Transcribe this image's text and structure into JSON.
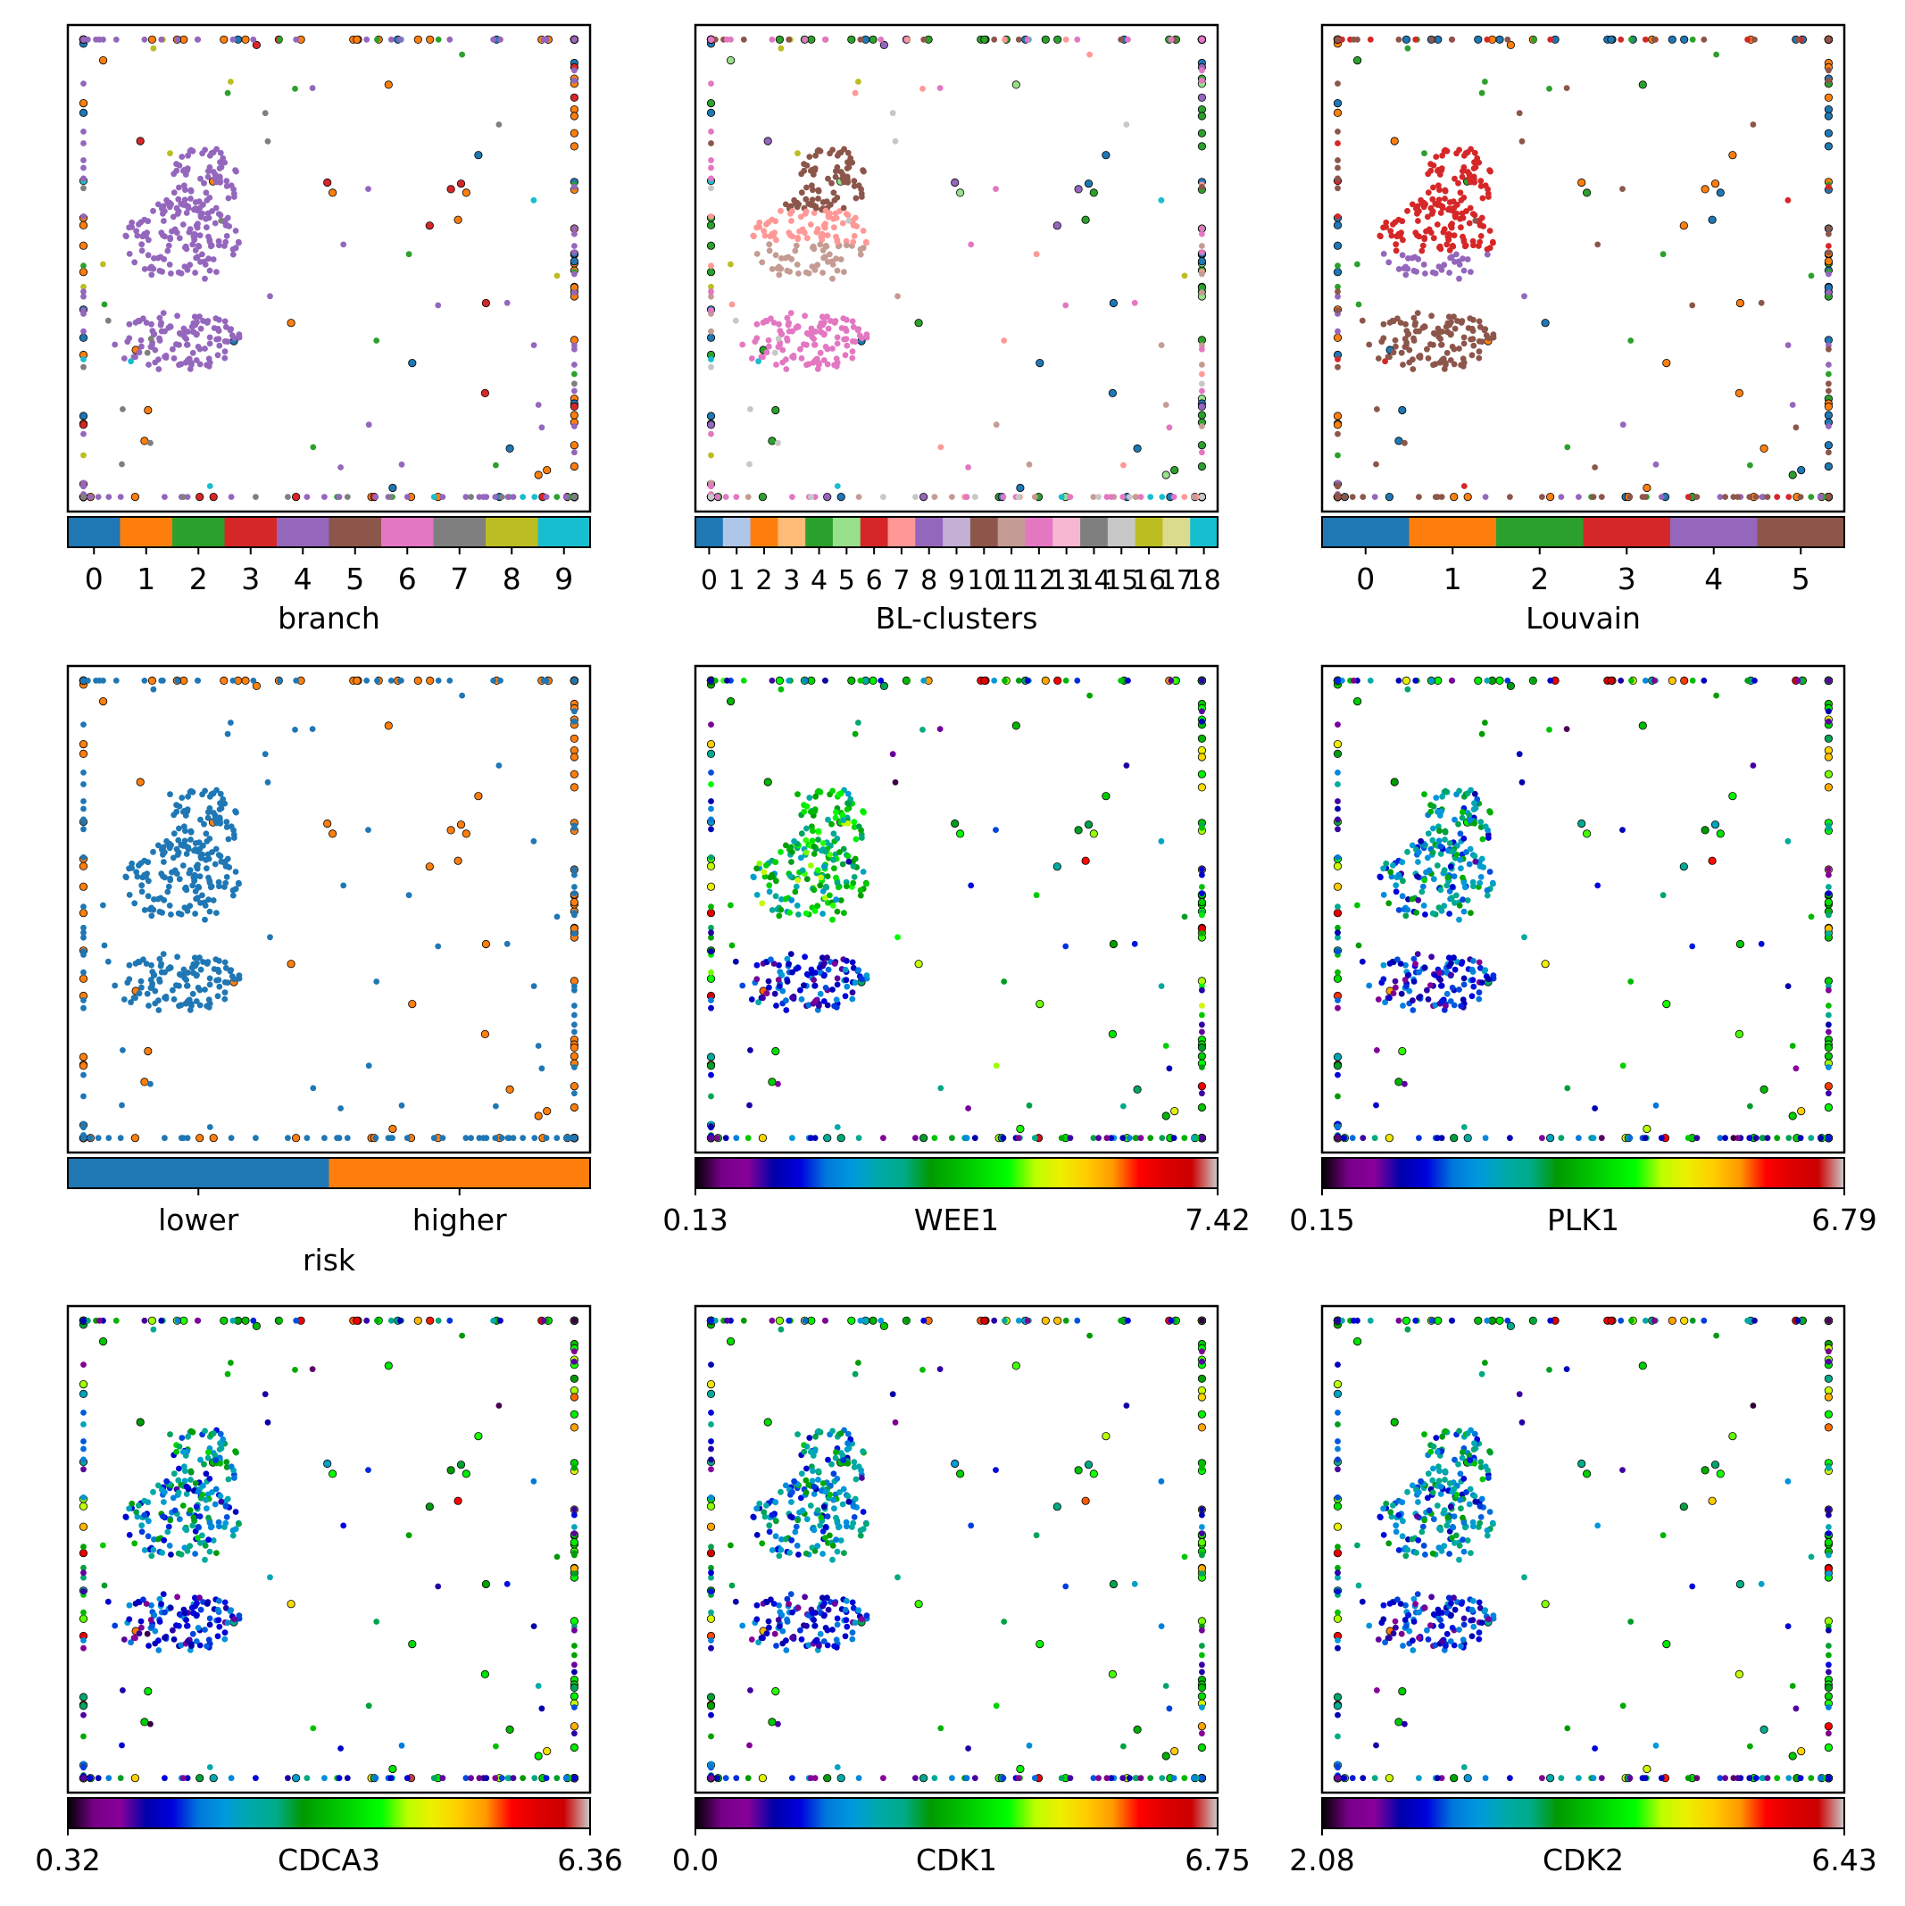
{
  "figure": {
    "layout": "3x3 grid of graph-embedding panels with colorbars"
  },
  "chart_data": [
    {
      "type": "scatter",
      "colorbar_kind": "categorical",
      "label": "branch",
      "categories": [
        "0",
        "1",
        "2",
        "3",
        "4",
        "5",
        "6",
        "7",
        "8",
        "9"
      ],
      "colors": [
        "#1f77b4",
        "#ff7f0e",
        "#2ca02c",
        "#d62728",
        "#9467bd",
        "#8c564b",
        "#e377c2",
        "#7f7f7f",
        "#bcbd22",
        "#17becf"
      ],
      "tick_labels": [
        "0",
        "1",
        "2",
        "3",
        "4",
        "5",
        "6",
        "7",
        "8",
        "9"
      ],
      "node_map": "branch"
    },
    {
      "type": "scatter",
      "colorbar_kind": "categorical",
      "label": "BL-clusters",
      "categories": [
        "0",
        "1",
        "2",
        "3",
        "4",
        "5",
        "6",
        "7",
        "8",
        "9",
        "10",
        "11",
        "12",
        "13",
        "14",
        "15",
        "16",
        "17",
        "18"
      ],
      "colors": [
        "#1f77b4",
        "#aec7e8",
        "#ff7f0e",
        "#ffbb78",
        "#2ca02c",
        "#98df8a",
        "#d62728",
        "#ff9896",
        "#9467bd",
        "#c5b0d5",
        "#8c564b",
        "#c49c94",
        "#e377c2",
        "#f7b6d2",
        "#7f7f7f",
        "#c7c7c7",
        "#bcbd22",
        "#dbdb8d",
        "#17becf"
      ],
      "tick_labels": [
        "0",
        "1",
        "2",
        "3",
        "4",
        "5",
        "6",
        "7",
        "8",
        "9",
        "10",
        "11",
        "12",
        "13",
        "14",
        "15",
        "16",
        "17",
        "18"
      ],
      "node_map": "bl"
    },
    {
      "type": "scatter",
      "colorbar_kind": "categorical",
      "label": "Louvain",
      "categories": [
        "0",
        "1",
        "2",
        "3",
        "4",
        "5"
      ],
      "colors": [
        "#1f77b4",
        "#ff7f0e",
        "#2ca02c",
        "#d62728",
        "#9467bd",
        "#8c564b"
      ],
      "tick_labels": [
        "0",
        "1",
        "2",
        "3",
        "4",
        "5"
      ],
      "node_map": "louvain"
    },
    {
      "type": "scatter",
      "colorbar_kind": "categorical",
      "label": "risk",
      "categories": [
        "lower",
        "higher"
      ],
      "colors": [
        "#1f77b4",
        "#ff7f0e"
      ],
      "tick_labels": [
        "lower",
        "higher"
      ],
      "node_map": "risk"
    },
    {
      "type": "scatter",
      "colorbar_kind": "continuous",
      "label": "WEE1",
      "min_label": "0.13",
      "max_label": "7.42",
      "vmin": 0.13,
      "vmax": 7.42,
      "colormap": "nipy_spectral",
      "node_map": "WEE1"
    },
    {
      "type": "scatter",
      "colorbar_kind": "continuous",
      "label": "PLK1",
      "min_label": "0.15",
      "max_label": "6.79",
      "vmin": 0.15,
      "vmax": 6.79,
      "colormap": "nipy_spectral",
      "node_map": "PLK1"
    },
    {
      "type": "scatter",
      "colorbar_kind": "continuous",
      "label": "CDCA3",
      "min_label": "0.32",
      "max_label": "6.36",
      "vmin": 0.32,
      "vmax": 6.36,
      "colormap": "nipy_spectral",
      "node_map": "CDCA3"
    },
    {
      "type": "scatter",
      "colorbar_kind": "continuous",
      "label": "CDK1",
      "min_label": "0.0",
      "max_label": "6.75",
      "vmin": 0.0,
      "vmax": 6.75,
      "colormap": "nipy_spectral",
      "node_map": "CDK1"
    },
    {
      "type": "scatter",
      "colorbar_kind": "continuous",
      "label": "CDK2",
      "min_label": "2.08",
      "max_label": "6.43",
      "vmin": 2.08,
      "vmax": 6.43,
      "colormap": "nipy_spectral",
      "node_map": "CDK2"
    }
  ]
}
